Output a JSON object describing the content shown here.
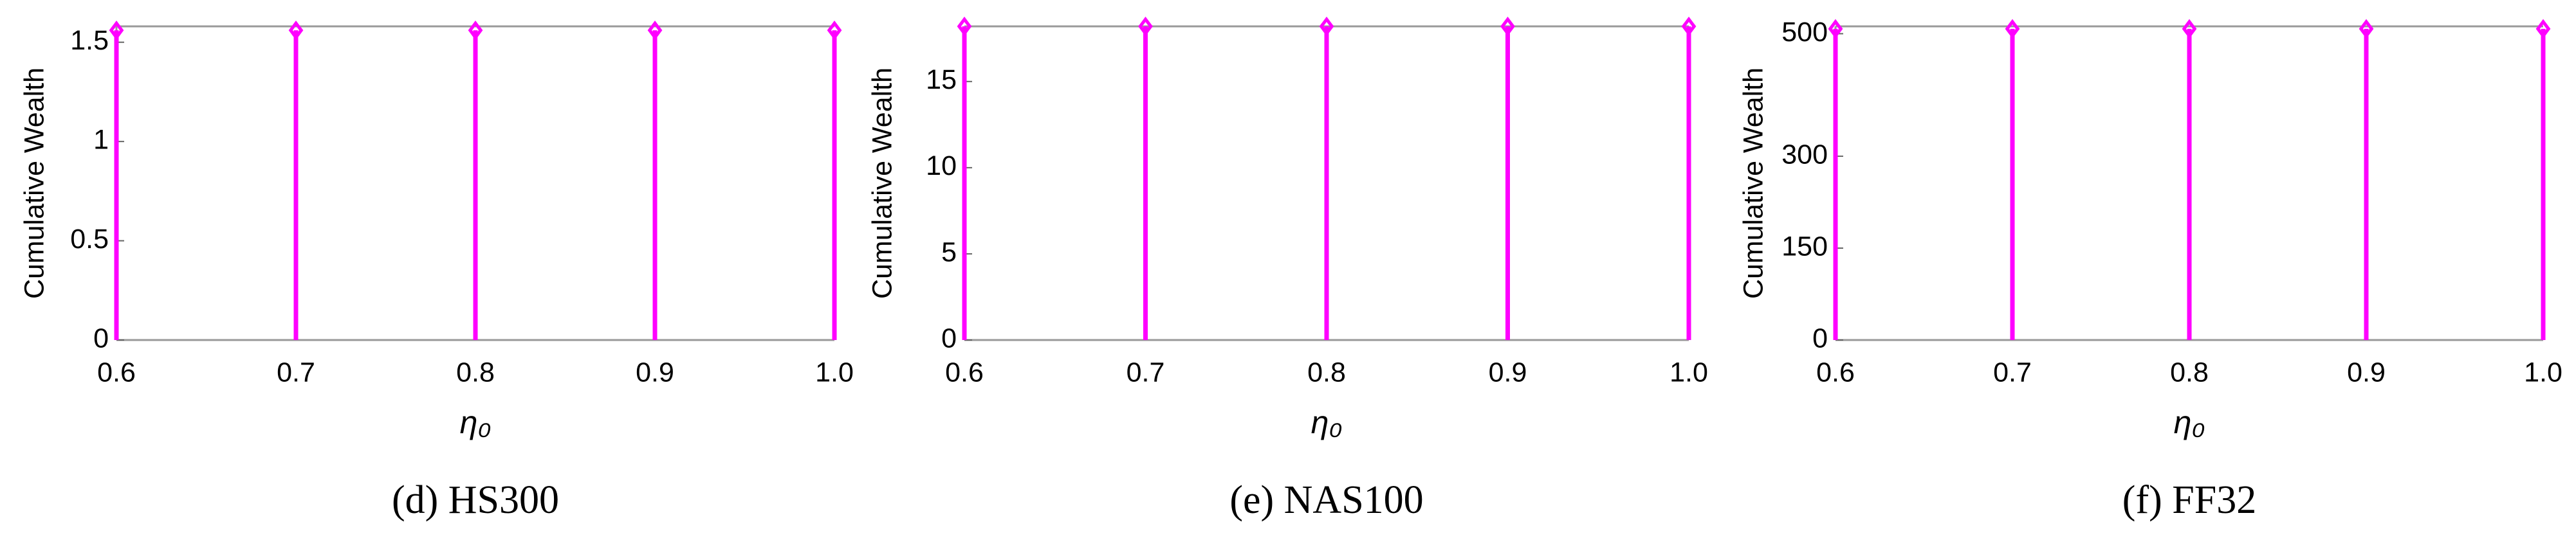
{
  "chart_data": [
    {
      "type": "stem",
      "caption": "(d) HS300",
      "ylabel": "Cumulative Wealth",
      "xlabel": "η₀",
      "color": "#ff00ff",
      "x": [
        0.6,
        0.7,
        0.8,
        0.9,
        1.0
      ],
      "values": [
        1.56,
        1.56,
        1.56,
        1.56,
        1.56
      ],
      "xlim": [
        0.6,
        1.0
      ],
      "xticks": [
        0.6,
        0.7,
        0.8,
        0.9,
        {
          "value": 1.0,
          "label": "1.0"
        }
      ],
      "ylim": [
        0,
        1.58
      ],
      "yticks": [
        0,
        0.5,
        1,
        1.5
      ]
    },
    {
      "type": "stem",
      "caption": "(e) NAS100",
      "ylabel": "Cumulative Wealth",
      "xlabel": "η₀",
      "color": "#ff00ff",
      "x": [
        0.6,
        0.7,
        0.8,
        0.9,
        1.0
      ],
      "values": [
        18.2,
        18.2,
        18.2,
        18.2,
        18.2
      ],
      "xlim": [
        0.6,
        1.0
      ],
      "xticks": [
        0.6,
        0.7,
        0.8,
        0.9,
        {
          "value": 1.0,
          "label": "1.0"
        }
      ],
      "ylim": [
        0,
        18.2
      ],
      "yticks": [
        0,
        5,
        10,
        15
      ]
    },
    {
      "type": "stem",
      "caption": "(f) FF32",
      "ylabel": "Cumulative Wealth",
      "xlabel": "η₀",
      "color": "#ff00ff",
      "x": [
        0.6,
        0.7,
        0.8,
        0.9,
        1.0
      ],
      "values": [
        508,
        508,
        508,
        508,
        508
      ],
      "xlim": [
        0.6,
        1.0
      ],
      "xticks": [
        0.6,
        0.7,
        0.8,
        0.9,
        {
          "value": 1.0,
          "label": "1.0"
        }
      ],
      "ylim": [
        0,
        512
      ],
      "yticks": [
        0,
        150,
        300,
        500
      ]
    }
  ]
}
